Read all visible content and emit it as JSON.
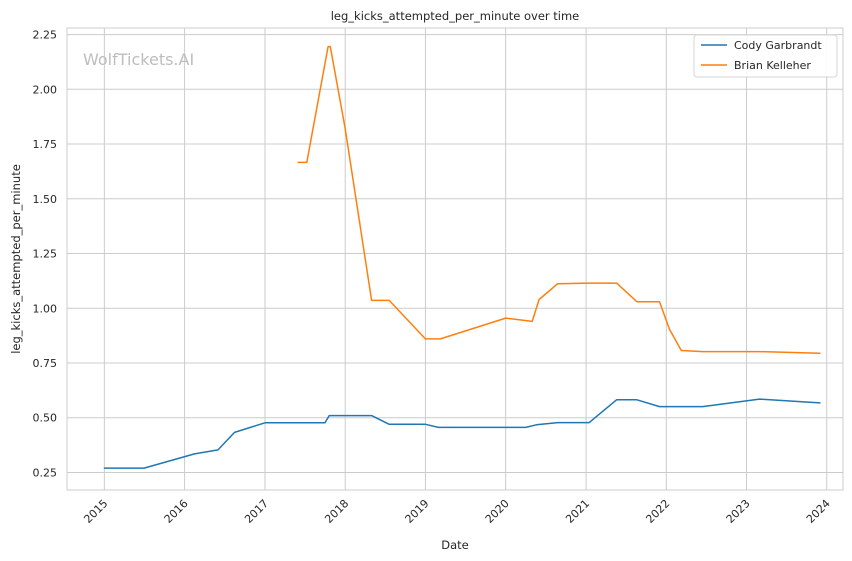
{
  "chart_data": {
    "type": "line",
    "title": "leg_kicks_attempted_per_minute over time",
    "xlabel": "Date",
    "ylabel": "leg_kicks_attempted_per_minute",
    "watermark": "WolfTickets.AI",
    "xlim": [
      "2014-07-15",
      "2024-03-15"
    ],
    "ylim": [
      0.17,
      2.28
    ],
    "x_ticks": [
      "2015",
      "2016",
      "2017",
      "2018",
      "2019",
      "2020",
      "2021",
      "2022",
      "2023",
      "2024"
    ],
    "y_ticks": [
      "0.25",
      "0.50",
      "0.75",
      "1.00",
      "1.25",
      "1.50",
      "1.75",
      "2.00",
      "2.25"
    ],
    "grid": true,
    "legend_position": "top-right",
    "series": [
      {
        "name": "Cody Garbrandt",
        "color": "#1f77b4",
        "points": [
          [
            "2015-01-01",
            0.27
          ],
          [
            "2015-07-01",
            0.27
          ],
          [
            "2016-02-15",
            0.335
          ],
          [
            "2016-06-01",
            0.353
          ],
          [
            "2016-08-15",
            0.433
          ],
          [
            "2017-01-01",
            0.477
          ],
          [
            "2017-10-01",
            0.477
          ],
          [
            "2017-10-20",
            0.51
          ],
          [
            "2018-05-01",
            0.51
          ],
          [
            "2018-07-20",
            0.47
          ],
          [
            "2019-01-01",
            0.47
          ],
          [
            "2019-03-01",
            0.456
          ],
          [
            "2020-04-01",
            0.456
          ],
          [
            "2020-05-20",
            0.468
          ],
          [
            "2020-08-25",
            0.478
          ],
          [
            "2021-01-15",
            0.478
          ],
          [
            "2021-05-20",
            0.582
          ],
          [
            "2021-08-20",
            0.582
          ],
          [
            "2021-12-01",
            0.551
          ],
          [
            "2022-06-15",
            0.551
          ],
          [
            "2023-03-01",
            0.585
          ],
          [
            "2023-12-01",
            0.568
          ]
        ]
      },
      {
        "name": "Brian Kelleher",
        "color": "#ff7f0e",
        "points": [
          [
            "2017-06-01",
            1.666
          ],
          [
            "2017-07-10",
            1.666
          ],
          [
            "2017-10-15",
            2.195
          ],
          [
            "2017-10-25",
            2.195
          ],
          [
            "2018-01-01",
            1.82
          ],
          [
            "2018-05-01",
            1.036
          ],
          [
            "2018-07-20",
            1.036
          ],
          [
            "2019-01-01",
            0.86
          ],
          [
            "2019-03-10",
            0.86
          ],
          [
            "2020-01-01",
            0.955
          ],
          [
            "2020-05-01",
            0.94
          ],
          [
            "2020-06-01",
            1.04
          ],
          [
            "2020-08-25",
            1.112
          ],
          [
            "2021-01-15",
            1.115
          ],
          [
            "2021-05-20",
            1.115
          ],
          [
            "2021-08-20",
            1.03
          ],
          [
            "2021-12-01",
            1.03
          ],
          [
            "2022-01-15",
            0.905
          ],
          [
            "2022-03-10",
            0.807
          ],
          [
            "2022-06-15",
            0.802
          ],
          [
            "2023-03-01",
            0.802
          ],
          [
            "2023-12-01",
            0.795
          ]
        ]
      }
    ]
  }
}
